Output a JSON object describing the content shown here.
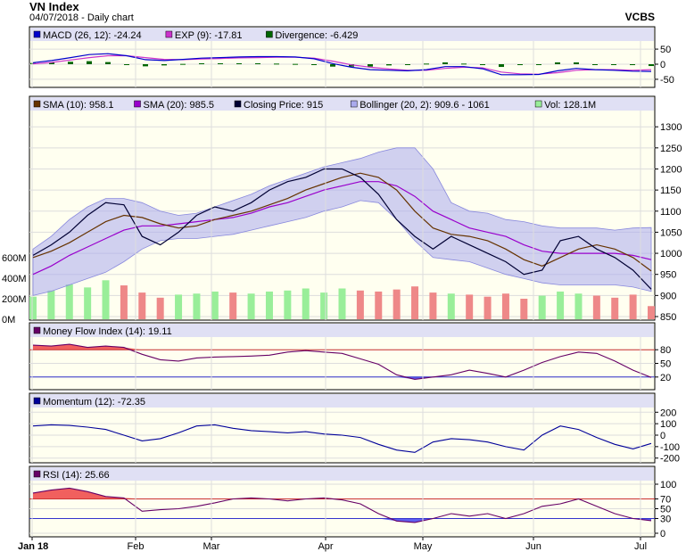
{
  "header": {
    "title": "VN Index",
    "subtitle": "04/07/2018 - Daily chart",
    "brand": "VCBS"
  },
  "colors": {
    "panel_bg": "#fffff0",
    "legend_bg": "#e0e0f4",
    "macd": "#0000cc",
    "exp": "#cc33cc",
    "divergence": "#006600",
    "sma10": "#663300",
    "sma20": "#9900cc",
    "close": "#000033",
    "bollinger": "#aaaaee",
    "vol_up": "#99ee99",
    "vol_down": "#ee8888",
    "mfi": "#660066",
    "momentum": "#000099",
    "rsi": "#660066",
    "overbought_fill": "#ee4444",
    "oversold_fill": "#4444ee"
  },
  "chart_data": [
    {
      "id": "macd",
      "type": "line",
      "legend": [
        {
          "label": "MACD (26, 12): -24.24",
          "color": "#0000cc"
        },
        {
          "label": "EXP (9): -17.81",
          "color": "#cc33cc"
        },
        {
          "label": "Divergence: -6.429",
          "color": "#006600"
        }
      ],
      "ylim": [
        -65,
        65
      ],
      "yticks": [
        "50",
        "0",
        "-50"
      ],
      "ytick_values": [
        50,
        0,
        -50
      ],
      "series": [
        {
          "name": "MACD (26, 12)",
          "values": [
            5,
            12,
            22,
            32,
            35,
            28,
            15,
            12,
            16,
            20,
            22,
            24,
            25,
            25,
            24,
            18,
            2,
            -10,
            -18,
            -20,
            -22,
            -18,
            -8,
            -8,
            -15,
            -35,
            -35,
            -34,
            -22,
            -14,
            -18,
            -20,
            -23,
            -24
          ]
        },
        {
          "name": "EXP (9)",
          "values": [
            1,
            6,
            14,
            22,
            28,
            28,
            22,
            16,
            15,
            17,
            19,
            21,
            22,
            23,
            23,
            20,
            10,
            -2,
            -10,
            -16,
            -20,
            -20,
            -14,
            -10,
            -12,
            -26,
            -32,
            -33,
            -28,
            -20,
            -18,
            -18,
            -20,
            -18
          ]
        },
        {
          "name": "Divergence",
          "values": [
            4,
            6,
            8,
            10,
            7,
            0,
            -7,
            -4,
            1,
            3,
            3,
            3,
            3,
            2,
            1,
            -2,
            -8,
            -8,
            -8,
            -4,
            -2,
            2,
            6,
            2,
            -3,
            -9,
            -3,
            -1,
            6,
            6,
            0,
            -2,
            -3,
            -6
          ]
        }
      ]
    },
    {
      "id": "price",
      "type": "line",
      "legend": [
        {
          "label": "SMA (10): 958.1",
          "color": "#663300"
        },
        {
          "label": "SMA (20): 985.5",
          "color": "#9900cc"
        },
        {
          "label": "Closing Price: 915",
          "color": "#000033"
        },
        {
          "label": "Bollinger (20, 2): 909.6 - 1061",
          "color": "#aaaaee"
        },
        {
          "label": "Vol: 128.1M",
          "color": "#99ee99"
        }
      ],
      "ylim": [
        850,
        1330
      ],
      "yticks": [
        "1300",
        "1250",
        "1200",
        "1150",
        "1100",
        "1050",
        "1000",
        "950",
        "900",
        "850"
      ],
      "ytick_values": [
        1300,
        1250,
        1200,
        1150,
        1100,
        1050,
        1000,
        950,
        900,
        850
      ],
      "vol_ticks": [
        "600M",
        "400M",
        "200M",
        "0M"
      ],
      "vol_tick_values": [
        600,
        400,
        200,
        0
      ],
      "vol_max": 880,
      "series": [
        {
          "name": "Closing Price",
          "values": [
            995,
            1020,
            1050,
            1090,
            1120,
            1115,
            1040,
            1020,
            1050,
            1090,
            1110,
            1100,
            1120,
            1150,
            1170,
            1180,
            1200,
            1200,
            1180,
            1140,
            1080,
            1040,
            1010,
            1040,
            1020,
            1000,
            980,
            950,
            960,
            1030,
            1040,
            1010,
            990,
            960,
            915
          ]
        },
        {
          "name": "SMA (10)",
          "values": [
            990,
            1005,
            1025,
            1050,
            1075,
            1090,
            1085,
            1070,
            1060,
            1065,
            1080,
            1090,
            1100,
            1115,
            1130,
            1150,
            1165,
            1180,
            1190,
            1180,
            1150,
            1100,
            1060,
            1045,
            1040,
            1030,
            1010,
            985,
            970,
            990,
            1010,
            1020,
            1010,
            990,
            958
          ]
        },
        {
          "name": "SMA (20)",
          "values": [
            950,
            970,
            995,
            1015,
            1035,
            1055,
            1065,
            1065,
            1070,
            1075,
            1080,
            1085,
            1095,
            1110,
            1120,
            1135,
            1150,
            1160,
            1170,
            1170,
            1160,
            1135,
            1100,
            1080,
            1060,
            1050,
            1040,
            1020,
            1005,
            1000,
            1000,
            1000,
            1000,
            995,
            985
          ]
        },
        {
          "name": "Bollinger Upper",
          "values": [
            1010,
            1040,
            1080,
            1110,
            1130,
            1130,
            1120,
            1100,
            1090,
            1095,
            1110,
            1125,
            1140,
            1160,
            1175,
            1190,
            1205,
            1215,
            1225,
            1240,
            1250,
            1250,
            1200,
            1120,
            1100,
            1095,
            1080,
            1075,
            1065,
            1060,
            1060,
            1060,
            1055,
            1060,
            1061
          ]
        },
        {
          "name": "Bollinger Lower",
          "values": [
            900,
            910,
            925,
            940,
            955,
            980,
            1010,
            1030,
            1035,
            1035,
            1040,
            1045,
            1055,
            1065,
            1075,
            1085,
            1100,
            1110,
            1125,
            1120,
            1080,
            1030,
            990,
            985,
            980,
            965,
            950,
            940,
            930,
            925,
            925,
            925,
            925,
            920,
            909.6
          ]
        },
        {
          "name": "Vol",
          "values": [
            220,
            280,
            340,
            310,
            380,
            330,
            260,
            210,
            240,
            250,
            270,
            260,
            250,
            270,
            280,
            300,
            260,
            300,
            280,
            270,
            290,
            320,
            260,
            250,
            240,
            220,
            250,
            200,
            230,
            270,
            250,
            230,
            210,
            240,
            128.1
          ]
        }
      ]
    },
    {
      "id": "mfi",
      "type": "line",
      "legend": [
        {
          "label": "Money Flow Index (14): 19.11",
          "color": "#660066"
        }
      ],
      "ylim": [
        0,
        100
      ],
      "yticks": [
        "80",
        "50",
        "20"
      ],
      "ytick_values": [
        80,
        50,
        20
      ],
      "ref_lines": [
        80,
        20
      ],
      "series": [
        {
          "name": "Money Flow Index (14)",
          "values": [
            90,
            88,
            92,
            85,
            88,
            85,
            70,
            58,
            55,
            62,
            64,
            65,
            66,
            68,
            75,
            78,
            75,
            72,
            60,
            48,
            25,
            15,
            20,
            25,
            35,
            28,
            20,
            35,
            52,
            65,
            75,
            72,
            55,
            35,
            19.11
          ]
        }
      ]
    },
    {
      "id": "momentum",
      "type": "line",
      "legend": [
        {
          "label": "Momentum (12): -72.35",
          "color": "#000099"
        }
      ],
      "ylim": [
        -210,
        210
      ],
      "yticks": [
        "200",
        "100",
        "0",
        "-100",
        "-200"
      ],
      "ytick_values": [
        200,
        100,
        0,
        -100,
        -200
      ],
      "series": [
        {
          "name": "Momentum (12)",
          "values": [
            80,
            90,
            85,
            70,
            50,
            0,
            -50,
            -30,
            20,
            80,
            90,
            60,
            40,
            30,
            20,
            30,
            10,
            0,
            -20,
            -80,
            -130,
            -150,
            -60,
            -30,
            -40,
            -60,
            -100,
            -130,
            0,
            80,
            50,
            -20,
            -80,
            -120,
            -72.35
          ]
        }
      ]
    },
    {
      "id": "rsi",
      "type": "line",
      "legend": [
        {
          "label": "RSI (14): 25.66",
          "color": "#660066"
        }
      ],
      "ylim": [
        0,
        100
      ],
      "yticks": [
        "100",
        "70",
        "50",
        "30",
        "0"
      ],
      "ytick_values": [
        100,
        70,
        50,
        30,
        0
      ],
      "ref_lines": [
        70,
        30
      ],
      "series": [
        {
          "name": "RSI (14)",
          "values": [
            82,
            88,
            92,
            85,
            75,
            72,
            45,
            48,
            50,
            55,
            62,
            70,
            72,
            70,
            66,
            70,
            72,
            68,
            60,
            40,
            25,
            22,
            30,
            40,
            35,
            40,
            30,
            40,
            55,
            60,
            70,
            55,
            40,
            30,
            25.66
          ]
        }
      ]
    }
  ],
  "xaxis": {
    "labels": [
      "Jan 18",
      "Feb",
      "Mar",
      "Apr",
      "May",
      "Jun",
      "Jul"
    ]
  }
}
